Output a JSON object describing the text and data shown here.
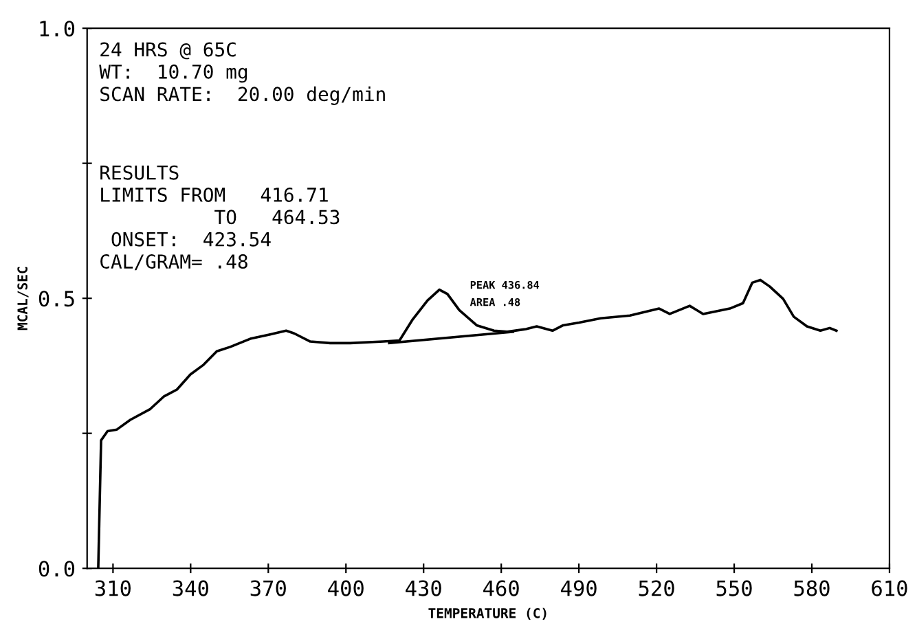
{
  "chart_data": {
    "type": "line",
    "xlabel": "TEMPERATURE (C)",
    "ylabel": "MCAL/SEC",
    "xlim": [
      300,
      610
    ],
    "xticks": [
      310,
      340,
      370,
      400,
      430,
      460,
      490,
      520,
      550,
      580,
      610
    ],
    "ylim": [
      0,
      1.0
    ],
    "yticks": [
      {
        "value": 0,
        "label": "0.0"
      },
      {
        "value": 0.25,
        "label": null
      },
      {
        "value": 0.5,
        "label": "0.5"
      },
      {
        "value": 0.75,
        "label": null
      },
      {
        "value": 1.0,
        "label": "1.0"
      }
    ],
    "grid": false,
    "legend": false,
    "line_style": "solid",
    "marker": "none",
    "series": [
      {
        "color": "#000000",
        "x": [
          304.3,
          305.4,
          307.9,
          311.5,
          316.7,
          324.4,
          329.6,
          334.7,
          339.9,
          345.0,
          350.1,
          355.3,
          363.0,
          370.7,
          376.9,
          380.0,
          386.2,
          393.9,
          401.6,
          414.5,
          420.7,
          425.8,
          431.5,
          436.1,
          439.2,
          443.8,
          450.5,
          457.2,
          462.3,
          469.5,
          473.7,
          479.8,
          483.9,
          490.1,
          498.4,
          509.7,
          521.0,
          525.1,
          532.8,
          538.0,
          548.3,
          553.4,
          557.0,
          560.1,
          563.7,
          568.9,
          573.0,
          578.1,
          583.3,
          586.9,
          589.5
        ],
        "values": [
          0.0,
          0.237,
          0.254,
          0.257,
          0.275,
          0.295,
          0.318,
          0.331,
          0.359,
          0.377,
          0.402,
          0.41,
          0.425,
          0.433,
          0.44,
          0.435,
          0.42,
          0.417,
          0.417,
          0.42,
          0.422,
          0.461,
          0.496,
          0.516,
          0.508,
          0.478,
          0.45,
          0.44,
          0.438,
          0.443,
          0.448,
          0.44,
          0.45,
          0.455,
          0.463,
          0.468,
          0.481,
          0.471,
          0.486,
          0.471,
          0.481,
          0.491,
          0.529,
          0.534,
          0.522,
          0.499,
          0.466,
          0.448,
          0.44,
          0.445,
          0.44
        ]
      },
      {
        "color": "#000000",
        "x": [
          416.71,
          464.53
        ],
        "values": [
          0.417,
          0.438
        ]
      }
    ],
    "annotations": [
      "24 HRS @ 65C\nWT:  10.70 mg\nSCAN RATE:  20.00 deg/min",
      "RESULTS\nLIMITS FROM   416.71\n          TO   464.53\n ONSET:  423.54\nCAL/GRAM= .48",
      {
        "text": "PEAK 436.84",
        "x": 436.1,
        "y": 0.516
      },
      "AREA .48"
    ]
  }
}
